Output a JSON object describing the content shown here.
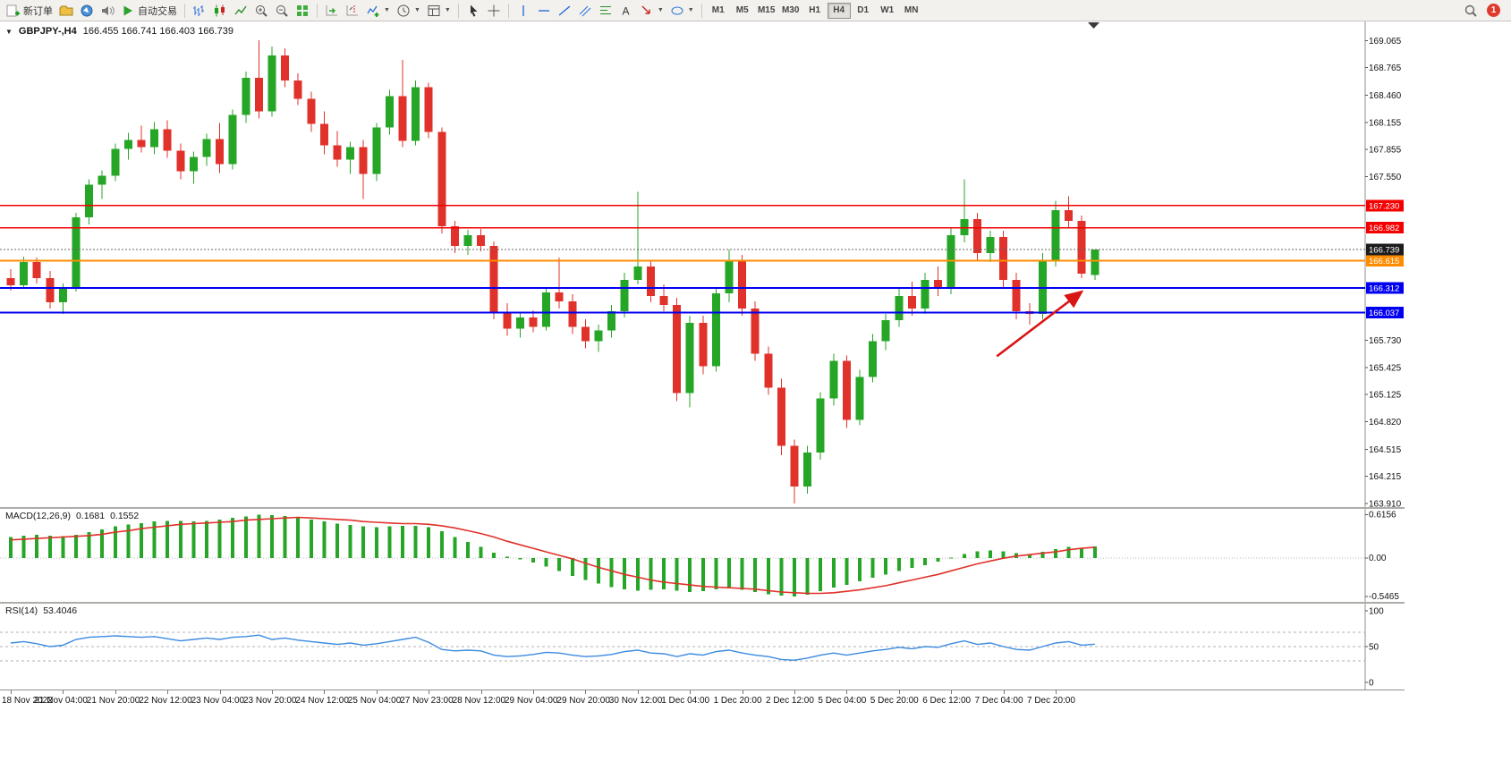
{
  "toolbar": {
    "new_order_label": "新订单",
    "auto_trading_label": "自动交易",
    "timeframes": [
      "M1",
      "M5",
      "M15",
      "M30",
      "H1",
      "H4",
      "D1",
      "W1",
      "MN"
    ],
    "active_timeframe": "H4",
    "notification_badge": "1"
  },
  "chart": {
    "symbol": "GBPJPY-,H4",
    "ohlc_readout": "166.455 166.741 166.403 166.739",
    "macd_label": "MACD(12,26,9)",
    "macd_value": "0.1681",
    "macd_signal": "0.1552",
    "rsi_label": "RSI(14)",
    "rsi_value": "53.4046"
  },
  "chart_data": {
    "type": "candlestick",
    "symbol": "GBPJPY-",
    "timeframe": "H4",
    "colors": {
      "bull": "#26a626",
      "bear": "#e0312a",
      "macd_histogram": "#26a626",
      "macd_signal": "#e0312a",
      "rsi_line": "#3b8ae0",
      "hline_red": "#f40000",
      "hline_orange": "#ff8c00",
      "hline_blue": "#0000f0",
      "current_price_tag": "#1c1c1c"
    },
    "candles": [
      [
        166.42,
        166.52,
        166.28,
        166.34
      ],
      [
        166.34,
        166.66,
        166.3,
        166.6
      ],
      [
        166.6,
        166.65,
        166.36,
        166.42
      ],
      [
        166.42,
        166.5,
        166.08,
        166.15
      ],
      [
        166.15,
        166.36,
        166.02,
        166.31
      ],
      [
        166.31,
        167.15,
        166.27,
        167.1
      ],
      [
        167.1,
        167.52,
        167.02,
        167.46
      ],
      [
        167.46,
        167.62,
        167.3,
        167.56
      ],
      [
        167.56,
        167.92,
        167.5,
        167.86
      ],
      [
        167.86,
        168.04,
        167.74,
        167.96
      ],
      [
        167.96,
        168.12,
        167.82,
        167.88
      ],
      [
        167.88,
        168.16,
        167.8,
        168.08
      ],
      [
        168.08,
        168.18,
        167.76,
        167.84
      ],
      [
        167.84,
        167.92,
        167.52,
        167.61
      ],
      [
        167.61,
        167.83,
        167.47,
        167.77
      ],
      [
        167.77,
        168.03,
        167.67,
        167.97
      ],
      [
        167.97,
        168.15,
        167.59,
        167.69
      ],
      [
        167.69,
        168.3,
        167.63,
        168.24
      ],
      [
        168.24,
        168.72,
        168.15,
        168.65
      ],
      [
        168.65,
        169.07,
        168.2,
        168.28
      ],
      [
        168.28,
        169.0,
        168.22,
        168.9
      ],
      [
        168.9,
        168.98,
        168.55,
        168.62
      ],
      [
        168.62,
        168.7,
        168.35,
        168.42
      ],
      [
        168.42,
        168.5,
        168.05,
        168.14
      ],
      [
        168.14,
        168.28,
        167.8,
        167.9
      ],
      [
        167.9,
        168.06,
        167.66,
        167.74
      ],
      [
        167.74,
        167.94,
        167.58,
        167.88
      ],
      [
        167.88,
        167.96,
        167.3,
        167.58
      ],
      [
        167.58,
        168.15,
        167.5,
        168.1
      ],
      [
        168.1,
        168.52,
        168.02,
        168.45
      ],
      [
        168.45,
        168.85,
        167.88,
        167.95
      ],
      [
        167.95,
        168.62,
        167.9,
        168.55
      ],
      [
        168.55,
        168.6,
        167.98,
        168.05
      ],
      [
        168.05,
        168.1,
        166.92,
        167.0
      ],
      [
        167.0,
        167.06,
        166.7,
        166.78
      ],
      [
        166.78,
        166.96,
        166.68,
        166.9
      ],
      [
        166.9,
        166.97,
        166.72,
        166.78
      ],
      [
        166.78,
        166.83,
        165.96,
        166.04
      ],
      [
        166.04,
        166.14,
        165.78,
        165.86
      ],
      [
        165.86,
        166.04,
        165.76,
        165.98
      ],
      [
        165.98,
        166.06,
        165.82,
        165.88
      ],
      [
        165.88,
        166.32,
        165.84,
        166.26
      ],
      [
        166.26,
        166.65,
        166.08,
        166.16
      ],
      [
        166.16,
        166.24,
        165.8,
        165.88
      ],
      [
        165.88,
        165.96,
        165.64,
        165.72
      ],
      [
        165.72,
        165.9,
        165.6,
        165.84
      ],
      [
        165.84,
        166.12,
        165.76,
        166.05
      ],
      [
        166.05,
        166.48,
        165.98,
        166.4
      ],
      [
        166.4,
        167.38,
        166.35,
        166.55
      ],
      [
        166.55,
        166.62,
        166.15,
        166.22
      ],
      [
        166.22,
        166.35,
        166.05,
        166.12
      ],
      [
        166.12,
        166.2,
        165.05,
        165.14
      ],
      [
        165.14,
        166.0,
        164.98,
        165.92
      ],
      [
        165.92,
        166.0,
        165.35,
        165.44
      ],
      [
        165.44,
        166.32,
        165.38,
        166.25
      ],
      [
        166.25,
        166.74,
        166.15,
        166.62
      ],
      [
        166.62,
        166.68,
        166.0,
        166.08
      ],
      [
        166.08,
        166.16,
        165.5,
        165.58
      ],
      [
        165.58,
        165.66,
        165.12,
        165.2
      ],
      [
        165.2,
        165.3,
        164.45,
        164.55
      ],
      [
        164.55,
        164.62,
        163.91,
        164.1
      ],
      [
        164.1,
        164.55,
        164.02,
        164.48
      ],
      [
        164.48,
        165.15,
        164.4,
        165.08
      ],
      [
        165.08,
        165.58,
        165.0,
        165.5
      ],
      [
        165.5,
        165.56,
        164.75,
        164.84
      ],
      [
        164.84,
        165.4,
        164.78,
        165.32
      ],
      [
        165.32,
        165.8,
        165.26,
        165.72
      ],
      [
        165.72,
        166.02,
        165.62,
        165.95
      ],
      [
        165.95,
        166.3,
        165.88,
        166.22
      ],
      [
        166.22,
        166.38,
        166.0,
        166.08
      ],
      [
        166.08,
        166.48,
        166.02,
        166.4
      ],
      [
        166.4,
        166.55,
        166.22,
        166.3
      ],
      [
        166.3,
        166.98,
        166.24,
        166.9
      ],
      [
        166.9,
        167.52,
        166.82,
        167.08
      ],
      [
        167.08,
        167.15,
        166.62,
        166.7
      ],
      [
        166.7,
        166.95,
        166.6,
        166.88
      ],
      [
        166.88,
        166.95,
        166.32,
        166.4
      ],
      [
        166.4,
        166.48,
        165.96,
        166.05
      ],
      [
        166.05,
        166.14,
        165.9,
        166.02
      ],
      [
        166.02,
        166.7,
        165.96,
        166.62
      ],
      [
        166.62,
        167.28,
        166.55,
        167.18
      ],
      [
        167.18,
        167.33,
        166.98,
        167.06
      ],
      [
        167.06,
        167.12,
        166.42,
        166.47
      ],
      [
        166.455,
        166.741,
        166.403,
        166.739
      ]
    ],
    "price_axis_ticks": [
      "169.065",
      "168.765",
      "168.460",
      "168.155",
      "167.855",
      "167.550",
      "165.730",
      "165.425",
      "165.125",
      "164.820",
      "164.515",
      "164.215",
      "163.910"
    ],
    "hlines": [
      {
        "price": 167.23,
        "label": "167.230",
        "color": "#f40000",
        "width": 1.4
      },
      {
        "price": 166.982,
        "label": "166.982",
        "color": "#f40000",
        "width": 1.4
      },
      {
        "price": 166.615,
        "label": "166.615",
        "color": "#ff8c00",
        "width": 2
      },
      {
        "price": 166.312,
        "label": "166.312",
        "color": "#0000f0",
        "width": 2
      },
      {
        "price": 166.037,
        "label": "166.037",
        "color": "#0000f0",
        "width": 2
      }
    ],
    "current_price": 166.739,
    "current_price_label": "166.739",
    "time_labels": [
      {
        "index": 0,
        "label": "18 Nov 2022"
      },
      {
        "index": 4,
        "label": "21 Nov 04:00"
      },
      {
        "index": 8,
        "label": "21 Nov 20:00"
      },
      {
        "index": 12,
        "label": "22 Nov 12:00"
      },
      {
        "index": 16,
        "label": "23 Nov 04:00"
      },
      {
        "index": 20,
        "label": "23 Nov 20:00"
      },
      {
        "index": 24,
        "label": "24 Nov 12:00"
      },
      {
        "index": 28,
        "label": "25 Nov 04:00"
      },
      {
        "index": 32,
        "label": "27 Nov 23:00"
      },
      {
        "index": 36,
        "label": "28 Nov 12:00"
      },
      {
        "index": 40,
        "label": "29 Nov 04:00"
      },
      {
        "index": 44,
        "label": "29 Nov 20:00"
      },
      {
        "index": 48,
        "label": "30 Nov 12:00"
      },
      {
        "index": 52,
        "label": "1 Dec 04:00"
      },
      {
        "index": 56,
        "label": "1 Dec 20:00"
      },
      {
        "index": 60,
        "label": "2 Dec 12:00"
      },
      {
        "index": 64,
        "label": "5 Dec 04:00"
      },
      {
        "index": 68,
        "label": "5 Dec 20:00"
      },
      {
        "index": 72,
        "label": "6 Dec 12:00"
      },
      {
        "index": 76,
        "label": "7 Dec 04:00"
      },
      {
        "index": 80,
        "label": "7 Dec 20:00"
      }
    ],
    "macd": {
      "histogram": [
        0.3,
        0.32,
        0.33,
        0.32,
        0.31,
        0.33,
        0.37,
        0.41,
        0.45,
        0.48,
        0.5,
        0.52,
        0.53,
        0.53,
        0.52,
        0.53,
        0.55,
        0.57,
        0.59,
        0.6156,
        0.61,
        0.6,
        0.58,
        0.55,
        0.52,
        0.49,
        0.47,
        0.45,
        0.44,
        0.45,
        0.46,
        0.46,
        0.44,
        0.38,
        0.3,
        0.23,
        0.16,
        0.08,
        0.02,
        -0.02,
        -0.06,
        -0.12,
        -0.18,
        -0.25,
        -0.31,
        -0.36,
        -0.41,
        -0.44,
        -0.46,
        -0.45,
        -0.44,
        -0.46,
        -0.48,
        -0.47,
        -0.44,
        -0.43,
        -0.45,
        -0.48,
        -0.51,
        -0.53,
        -0.5465,
        -0.52,
        -0.47,
        -0.42,
        -0.38,
        -0.33,
        -0.28,
        -0.23,
        -0.18,
        -0.14,
        -0.1,
        -0.05,
        0.01,
        0.06,
        0.1,
        0.11,
        0.1,
        0.07,
        0.06,
        0.09,
        0.13,
        0.16,
        0.15,
        0.1681
      ],
      "signal": [
        0.26,
        0.27,
        0.28,
        0.29,
        0.3,
        0.31,
        0.32,
        0.34,
        0.37,
        0.39,
        0.42,
        0.44,
        0.46,
        0.48,
        0.49,
        0.5,
        0.51,
        0.52,
        0.54,
        0.55,
        0.56,
        0.57,
        0.58,
        0.57,
        0.56,
        0.55,
        0.54,
        0.52,
        0.51,
        0.5,
        0.49,
        0.49,
        0.48,
        0.46,
        0.43,
        0.39,
        0.35,
        0.3,
        0.24,
        0.19,
        0.14,
        0.09,
        0.04,
        -0.01,
        -0.07,
        -0.13,
        -0.18,
        -0.23,
        -0.27,
        -0.31,
        -0.34,
        -0.36,
        -0.38,
        -0.4,
        -0.41,
        -0.42,
        -0.43,
        -0.44,
        -0.46,
        -0.48,
        -0.49,
        -0.5,
        -0.5,
        -0.49,
        -0.47,
        -0.45,
        -0.42,
        -0.39,
        -0.35,
        -0.31,
        -0.27,
        -0.23,
        -0.18,
        -0.13,
        -0.08,
        -0.04,
        0.0,
        0.03,
        0.05,
        0.07,
        0.09,
        0.12,
        0.14,
        0.1552
      ],
      "axis_ticks": [
        "0.6156",
        "0.00",
        "-0.5465"
      ]
    },
    "rsi": {
      "values": [
        55,
        57,
        54,
        50,
        52,
        60,
        63,
        64,
        65,
        64,
        63,
        64,
        61,
        58,
        60,
        62,
        60,
        63,
        64,
        66,
        60,
        62,
        59,
        57,
        55,
        53,
        55,
        52,
        54,
        57,
        60,
        63,
        56,
        46,
        44,
        45,
        44,
        38,
        36,
        37,
        39,
        42,
        41,
        38,
        36,
        37,
        39,
        43,
        45,
        41,
        40,
        36,
        40,
        38,
        43,
        45,
        41,
        38,
        36,
        32,
        31,
        34,
        38,
        41,
        38,
        41,
        44,
        46,
        49,
        47,
        50,
        49,
        54,
        58,
        53,
        55,
        50,
        46,
        45,
        50,
        55,
        57,
        52,
        53.4
      ],
      "axis_ticks": [
        "100",
        "50",
        "0"
      ],
      "levels": [
        70,
        50,
        30
      ]
    },
    "arrow_annotation": {
      "from_candle": 75.5,
      "from_price": 165.55,
      "to_candle": 82,
      "to_price": 166.27,
      "color": "#d81414"
    }
  }
}
